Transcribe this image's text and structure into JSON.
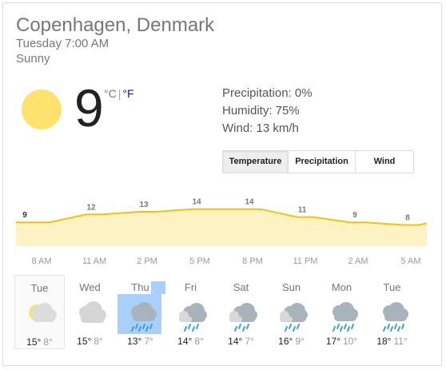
{
  "location": "Copenhagen, Denmark",
  "datetime": "Tuesday 7:00 AM",
  "condition": "Sunny",
  "current": {
    "temp": "9",
    "unit_c": "°C",
    "unit_sep": "|",
    "unit_f": "°F"
  },
  "details": {
    "precipitation": "Precipitation: 0%",
    "humidity": "Humidity: 75%",
    "wind": "Wind: 13 km/h"
  },
  "tabs": [
    {
      "label": "Temperature",
      "active": true
    },
    {
      "label": "Precipitation",
      "active": false
    },
    {
      "label": "Wind",
      "active": false
    }
  ],
  "chart_data": {
    "type": "area",
    "x": [
      "8 AM",
      "11 AM",
      "2 PM",
      "5 PM",
      "8 PM",
      "11 PM",
      "2 AM",
      "5 AM"
    ],
    "values": [
      9,
      12,
      13,
      14,
      14,
      11,
      9,
      8
    ],
    "ylim": [
      0,
      22
    ],
    "colors": {
      "line": "#f4c20d",
      "fill": "#fdf2c4",
      "label": "#777777"
    }
  },
  "forecast": [
    {
      "day": "Tue",
      "hi": "15°",
      "lo": "8°",
      "icon": "partly-sunny-icon"
    },
    {
      "day": "Wed",
      "hi": "15°",
      "lo": "8°",
      "icon": "cloudy-icon"
    },
    {
      "day": "Thu",
      "hi": "13°",
      "lo": "7°",
      "icon": "rain-icon"
    },
    {
      "day": "Fri",
      "hi": "14°",
      "lo": "8°",
      "icon": "showers-icon"
    },
    {
      "day": "Sat",
      "hi": "14°",
      "lo": "7°",
      "icon": "showers-icon"
    },
    {
      "day": "Sun",
      "hi": "16°",
      "lo": "9°",
      "icon": "showers-icon"
    },
    {
      "day": "Mon",
      "hi": "17°",
      "lo": "10°",
      "icon": "rain-icon"
    },
    {
      "day": "Tue",
      "hi": "18°",
      "lo": "11°",
      "icon": "rain-icon"
    }
  ]
}
